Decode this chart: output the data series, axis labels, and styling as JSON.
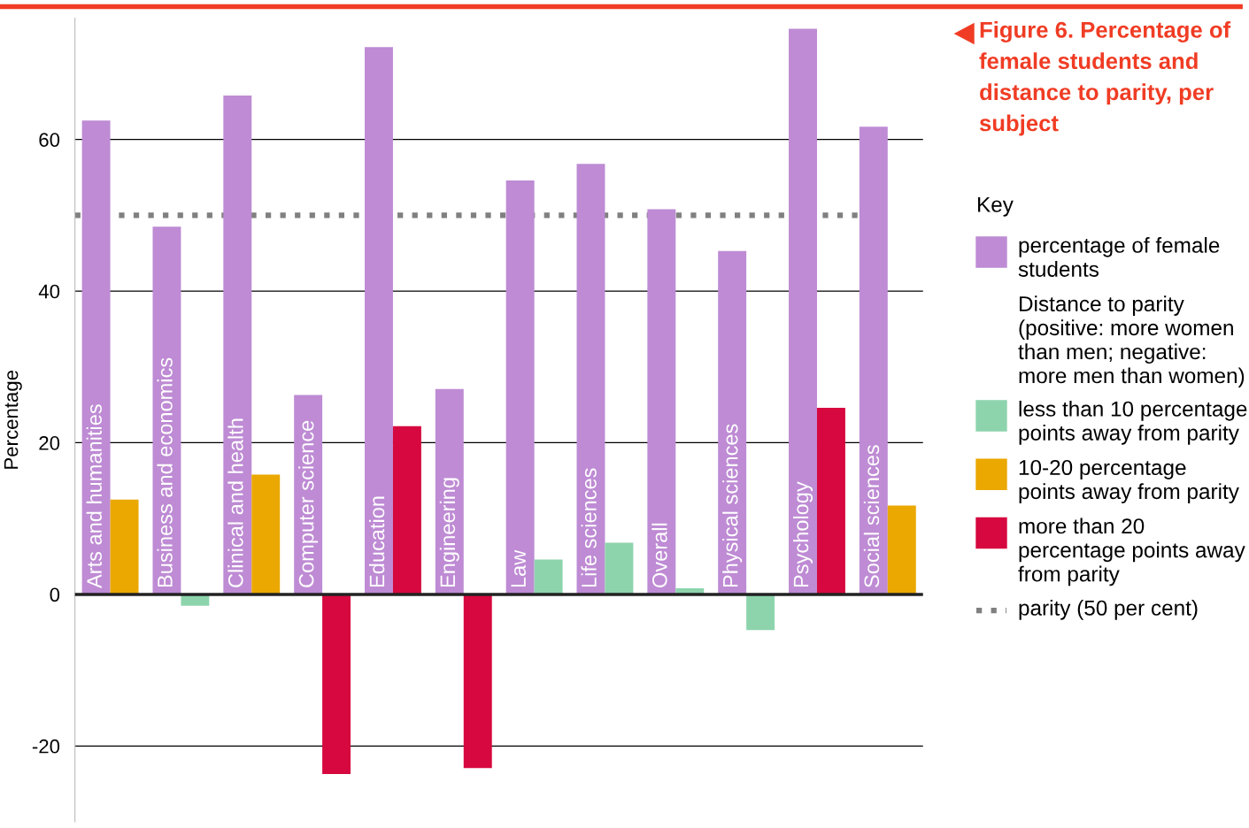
{
  "chart_data": {
    "type": "bar",
    "title": "Figure 6. Percentage of female students and distance to parity, per subject",
    "ylabel": "Percentage",
    "legend_title": "Key",
    "categories": [
      "Arts and humanities",
      "Business and economics",
      "Clinical and health",
      "Computer science",
      "Education",
      "Engineering",
      "Law",
      "Life sciences",
      "Overall",
      "Physical sciences",
      "Psychology",
      "Social sciences"
    ],
    "series": [
      {
        "name": "percentage of female students",
        "color": "#be8bd4",
        "values": [
          62.5,
          48.5,
          65.8,
          26.3,
          72.2,
          27.1,
          54.6,
          56.8,
          50.8,
          45.3,
          74.6,
          61.7
        ]
      },
      {
        "name": "less than 10 percentage points away from parity",
        "color": "#8dd4ad",
        "values": [
          null,
          -1.5,
          null,
          null,
          null,
          null,
          4.6,
          6.8,
          0.8,
          -4.7,
          null,
          null
        ]
      },
      {
        "name": "10-20 percentage points away from parity",
        "color": "#eaa800",
        "values": [
          12.5,
          null,
          15.8,
          null,
          null,
          null,
          null,
          null,
          null,
          null,
          null,
          11.7
        ]
      },
      {
        "name": "more than 20 percentage points away from parity",
        "color": "#d6083f",
        "values": [
          null,
          null,
          null,
          -23.7,
          22.2,
          -22.9,
          null,
          null,
          null,
          null,
          24.6,
          null
        ]
      }
    ],
    "annotations": [
      "Distance to parity (positive: more women than men; negative: more men than women)"
    ],
    "ref_lines": [
      {
        "axis": "y",
        "value": 50,
        "label": "parity (50 per cent)",
        "color": "#808080",
        "line_style": "dotted"
      }
    ],
    "ylim": [
      -30,
      76
    ],
    "yticks": [
      -20,
      0,
      20,
      40,
      60
    ],
    "grid": "y",
    "legend": "right"
  }
}
